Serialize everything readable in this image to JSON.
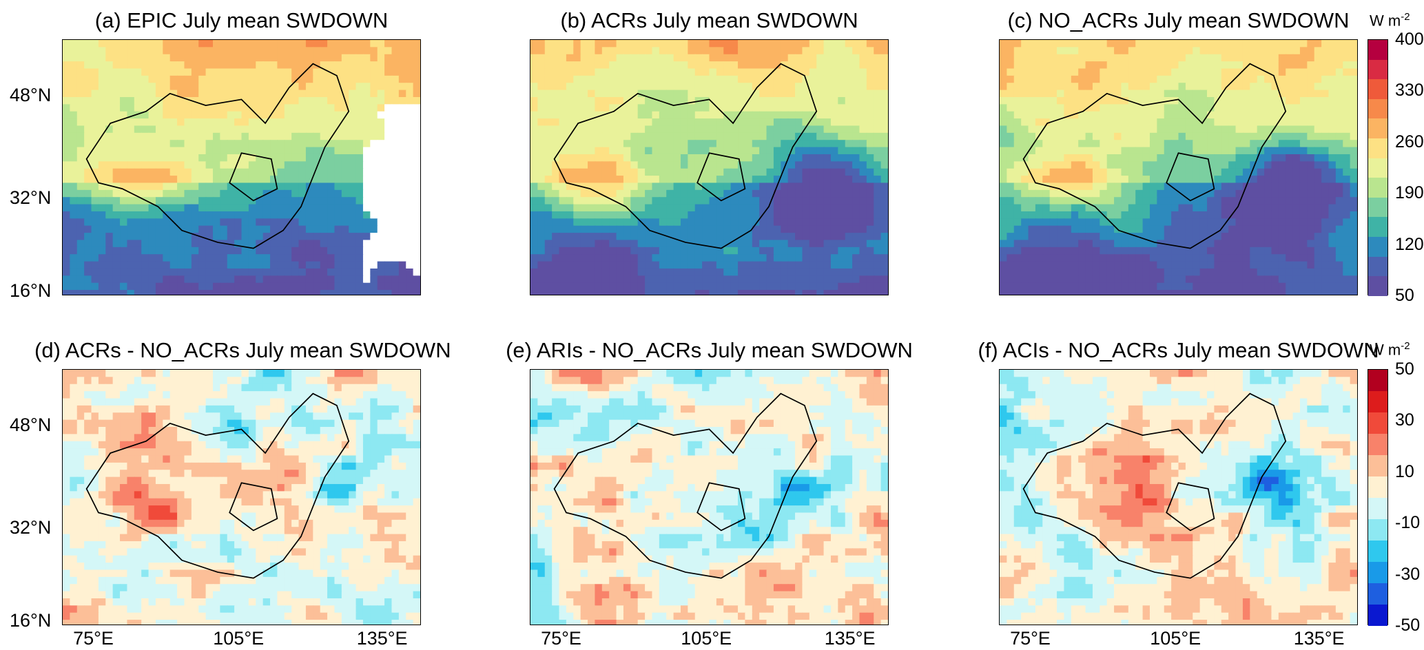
{
  "panels": [
    {
      "title": "(a) EPIC July mean SWDOWN",
      "kind": "abs",
      "variant": 0
    },
    {
      "title": "(b) ACRs July mean SWDOWN",
      "kind": "abs",
      "variant": 1
    },
    {
      "title": "(c) NO_ACRs July mean SWDOWN",
      "kind": "abs",
      "variant": 2
    },
    {
      "title": "(d) ACRs - NO_ACRs July mean SWDOWN",
      "kind": "diff",
      "variant": 0
    },
    {
      "title": "(e) ARIs - NO_ACRs July mean SWDOWN",
      "kind": "diff",
      "variant": 1
    },
    {
      "title": "(f) ACIs - NO_ACRs July mean SWDOWN",
      "kind": "diff",
      "variant": 2
    }
  ],
  "lat_labels": [
    "48°N",
    "32°N",
    "16°N"
  ],
  "lon_labels": [
    "75°E",
    "105°E",
    "135°E"
  ],
  "colorbar_top": {
    "unit": "W m",
    "unit_exp": "-2",
    "ticks": [
      "400",
      "330",
      "260",
      "190",
      "120",
      "50"
    ],
    "colors": [
      "#b5003f",
      "#d92b43",
      "#ef5a3a",
      "#f7894a",
      "#fbb462",
      "#fde184",
      "#e9f29a",
      "#b9e58f",
      "#7bcfa0",
      "#3fb3a6",
      "#2d8abd",
      "#4c63b0",
      "#5e4fa2"
    ]
  },
  "colorbar_bottom": {
    "unit": "W m",
    "unit_exp": "-2",
    "ticks": [
      "50",
      "30",
      "10",
      "-10",
      "-30",
      "-50"
    ],
    "colors": [
      "#b2001f",
      "#dd1c1c",
      "#f04a3a",
      "#f8826a",
      "#fcbf98",
      "#fff1d2",
      "#d4f7f7",
      "#8de8f2",
      "#2fc8ee",
      "#199ae8",
      "#1e5fe0",
      "#0a18d0"
    ]
  }
}
